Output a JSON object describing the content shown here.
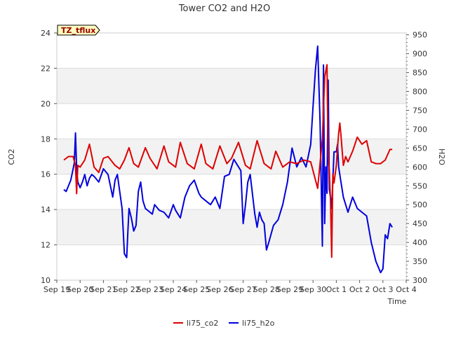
{
  "chart_data": {
    "type": "line",
    "title": "Tower CO2 and H2O",
    "badge": "TZ_tflux",
    "xlabel": "Time",
    "x_ticks": [
      "Sep 19",
      "Sep 20",
      "Sep 21",
      "Sep 22",
      "Sep 23",
      "Sep 24",
      "Sep 25",
      "Sep 26",
      "Sep 27",
      "Sep 28",
      "Sep 29",
      "Sep 30",
      "Oct 1",
      "Oct 2",
      "Oct 3",
      "Oct 4"
    ],
    "xlim": [
      0,
      15
    ],
    "left_axis": {
      "label": "CO2",
      "ylim": [
        10,
        24
      ],
      "ticks": [
        10,
        12,
        14,
        16,
        18,
        20,
        22,
        24
      ]
    },
    "right_axis": {
      "label": "H2O",
      "ylim": [
        300,
        955
      ],
      "ticks": [
        300,
        350,
        400,
        450,
        500,
        550,
        600,
        650,
        700,
        750,
        800,
        850,
        900,
        950
      ]
    },
    "bands": [
      [
        12,
        14
      ],
      [
        16,
        18
      ],
      [
        20,
        22
      ]
    ],
    "colors": {
      "li75_co2": "#dd0000",
      "li75_h2o": "#0000dd",
      "band": "#f2f2f2",
      "grid": "#dcdcdc",
      "badge_bg": "#ffffc0"
    },
    "legend_position": "bottom",
    "series": [
      {
        "name": "li75_co2",
        "axis": "left",
        "x": [
          0.3,
          0.5,
          0.7,
          0.8,
          0.85,
          0.9,
          1.0,
          1.2,
          1.4,
          1.6,
          1.8,
          2.0,
          2.2,
          2.5,
          2.7,
          2.9,
          3.1,
          3.3,
          3.5,
          3.8,
          4.0,
          4.3,
          4.6,
          4.8,
          5.1,
          5.3,
          5.6,
          5.9,
          6.2,
          6.4,
          6.7,
          7.0,
          7.3,
          7.5,
          7.8,
          8.1,
          8.3,
          8.6,
          8.9,
          9.2,
          9.4,
          9.7,
          10.0,
          10.3,
          10.6,
          10.9,
          11.2,
          11.4,
          11.5,
          11.6,
          11.65,
          11.7,
          11.75,
          11.8,
          11.85,
          11.9,
          12.0,
          12.05,
          12.1,
          12.15,
          12.2,
          12.3,
          12.4,
          12.5,
          12.7,
          12.9,
          13.1,
          13.3,
          13.5,
          13.7,
          13.9,
          14.1,
          14.3,
          14.4
        ],
        "values": [
          16.8,
          17.0,
          17.0,
          16.5,
          14.9,
          16.5,
          16.4,
          16.8,
          17.7,
          16.4,
          16.1,
          16.9,
          17.0,
          16.5,
          16.3,
          16.8,
          17.5,
          16.6,
          16.4,
          17.5,
          16.9,
          16.3,
          17.6,
          16.7,
          16.4,
          17.8,
          16.6,
          16.3,
          17.7,
          16.6,
          16.3,
          17.6,
          16.6,
          16.9,
          17.8,
          16.5,
          16.3,
          17.9,
          16.6,
          16.3,
          17.3,
          16.4,
          16.7,
          16.6,
          16.8,
          16.7,
          15.2,
          18.0,
          21.5,
          22.2,
          17.0,
          16.2,
          14.5,
          11.3,
          16.0,
          15.5,
          16.5,
          17.5,
          18.3,
          18.9,
          18.2,
          16.5,
          17.0,
          16.7,
          17.3,
          18.1,
          17.7,
          17.9,
          16.7,
          16.6,
          16.6,
          16.8,
          17.4,
          17.4
        ]
      },
      {
        "name": "li75_h2o",
        "axis": "right",
        "x": [
          0.3,
          0.4,
          0.6,
          0.75,
          0.8,
          0.85,
          0.9,
          1.0,
          1.1,
          1.2,
          1.3,
          1.4,
          1.5,
          1.6,
          1.8,
          2.0,
          2.2,
          2.4,
          2.5,
          2.6,
          2.8,
          2.9,
          3.0,
          3.05,
          3.1,
          3.2,
          3.3,
          3.4,
          3.5,
          3.6,
          3.7,
          3.8,
          4.0,
          4.1,
          4.2,
          4.4,
          4.6,
          4.8,
          5.0,
          5.1,
          5.3,
          5.5,
          5.7,
          5.9,
          6.1,
          6.2,
          6.4,
          6.6,
          6.8,
          7.0,
          7.2,
          7.4,
          7.6,
          7.8,
          7.9,
          8.0,
          8.1,
          8.2,
          8.3,
          8.5,
          8.6,
          8.7,
          8.8,
          8.9,
          9.0,
          9.1,
          9.3,
          9.5,
          9.7,
          9.9,
          10.1,
          10.3,
          10.5,
          10.7,
          10.9,
          11.0,
          11.1,
          11.2,
          11.3,
          11.4,
          11.45,
          11.5,
          11.55,
          11.6,
          11.65,
          11.7,
          11.75,
          11.8,
          11.9,
          12.0,
          12.05,
          12.1,
          12.2,
          12.3,
          12.4,
          12.5,
          12.7,
          12.9,
          13.1,
          13.3,
          13.5,
          13.7,
          13.9,
          14.0,
          14.1,
          14.2,
          14.3,
          14.4
        ],
        "values": [
          540,
          535,
          565,
          610,
          690,
          595,
          560,
          545,
          560,
          580,
          550,
          570,
          580,
          575,
          560,
          595,
          580,
          520,
          565,
          580,
          490,
          370,
          360,
          430,
          490,
          465,
          430,
          445,
          535,
          560,
          510,
          490,
          480,
          475,
          500,
          485,
          480,
          465,
          500,
          485,
          465,
          520,
          550,
          565,
          530,
          520,
          510,
          500,
          520,
          490,
          575,
          580,
          620,
          600,
          590,
          450,
          500,
          560,
          580,
          475,
          440,
          480,
          460,
          450,
          380,
          400,
          445,
          460,
          500,
          560,
          650,
          600,
          625,
          600,
          660,
          760,
          855,
          920,
          720,
          390,
          870,
          450,
          600,
          530,
          830,
          540,
          520,
          490,
          640,
          640,
          660,
          600,
          560,
          520,
          500,
          480,
          520,
          490,
          480,
          470,
          400,
          350,
          320,
          330,
          420,
          410,
          450,
          440
        ]
      }
    ]
  }
}
